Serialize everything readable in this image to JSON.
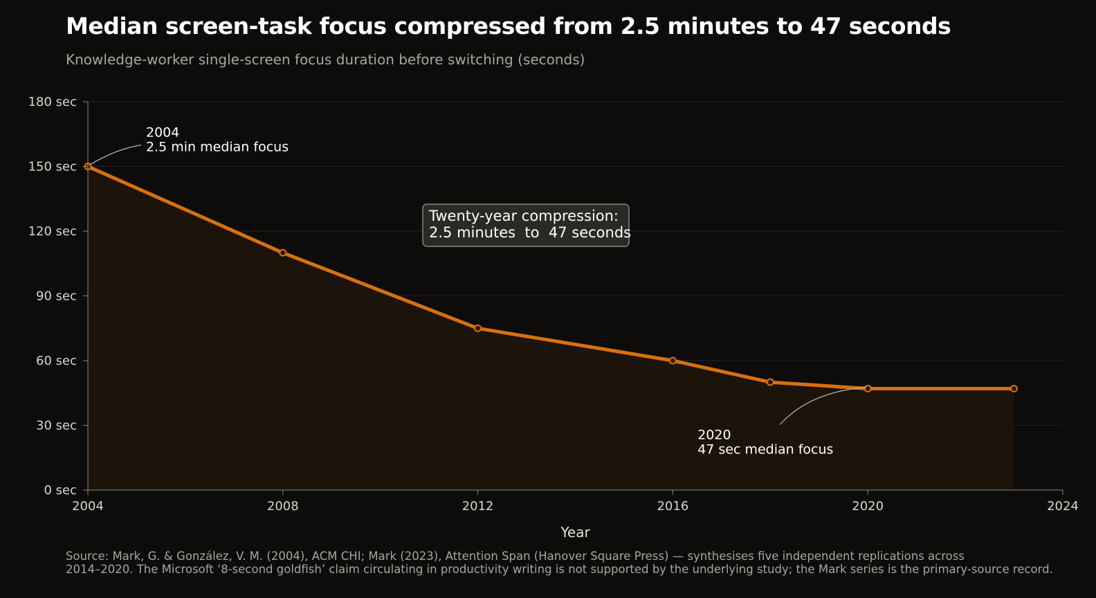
{
  "header": {
    "title": "Median screen-task focus compressed from 2.5 minutes to 47 seconds",
    "subtitle": "Knowledge-worker single-screen focus duration before switching (seconds)"
  },
  "source": {
    "line1": "Source: Mark, G. & González, V. M. (2004), ACM CHI; Mark (2023), Attention Span (Hanover Square Press) — synthesises five independent replications across",
    "line2": "2014–2020. The Microsoft ‘8-second goldfish’ claim circulating in productivity writing is not supported by the underlying study; the Mark series is the primary-source record."
  },
  "colors": {
    "line": "#d9700f",
    "area": "#1c140b",
    "grid": "#26231f",
    "axis": "#8c8984",
    "marker_fill": "#2a1a0a"
  },
  "chart_data": {
    "type": "line",
    "title": "Median screen-task focus compressed from 2.5 minutes to 47 seconds",
    "subtitle": "Knowledge-worker single-screen focus duration before switching (seconds)",
    "xlabel": "Year",
    "ylabel": "",
    "xlim": [
      2004,
      2024
    ],
    "ylim": [
      0,
      180
    ],
    "x_ticks": [
      2004,
      2008,
      2012,
      2016,
      2020,
      2024
    ],
    "x_tick_labels": [
      "2004",
      "2008",
      "2012",
      "2016",
      "2020",
      "2024"
    ],
    "y_ticks": [
      0,
      30,
      60,
      90,
      120,
      150,
      180
    ],
    "y_tick_labels": [
      "0 sec",
      "30 sec",
      "60 sec",
      "90 sec",
      "120 sec",
      "150 sec",
      "180 sec"
    ],
    "grid": true,
    "area_fill": true,
    "series": [
      {
        "x": [
          2004,
          2008,
          2012,
          2016,
          2018,
          2020,
          2023
        ],
        "values": [
          150,
          110,
          75,
          60,
          50,
          47,
          47
        ]
      }
    ],
    "annotations": [
      {
        "x": 2004,
        "y": 150,
        "lines": [
          "2004",
          "2.5 min median focus"
        ]
      },
      {
        "x": 2020,
        "y": 47,
        "lines": [
          "2020",
          "47 sec median focus"
        ]
      }
    ],
    "callout_box": {
      "lines": [
        "Twenty-year compression:",
        "2.5 minutes  to  47 seconds"
      ]
    }
  }
}
